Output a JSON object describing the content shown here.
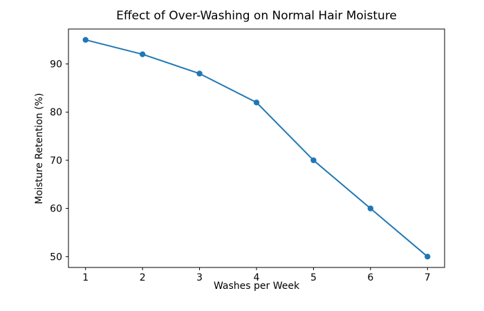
{
  "chart_data": {
    "type": "line",
    "title": "Effect of Over-Washing on Normal Hair Moisture",
    "xlabel": "Washes per Week",
    "ylabel": "Moisture Retention (%)",
    "x": [
      1,
      2,
      3,
      4,
      5,
      6,
      7
    ],
    "values": [
      95,
      92,
      88,
      82,
      70,
      60,
      50
    ],
    "series_name": "Moisture Retention",
    "xticks": [
      "1",
      "2",
      "3",
      "4",
      "5",
      "6",
      "7"
    ],
    "yticks": [
      50,
      60,
      70,
      80,
      90
    ],
    "xlim": [
      0.7,
      7.3
    ],
    "ylim": [
      47.75,
      97.25
    ],
    "line_color": "#1f77b4",
    "marker": "circle",
    "grid": false,
    "legend": false,
    "background_color": "#ffffff",
    "spine_color": "#000000"
  }
}
